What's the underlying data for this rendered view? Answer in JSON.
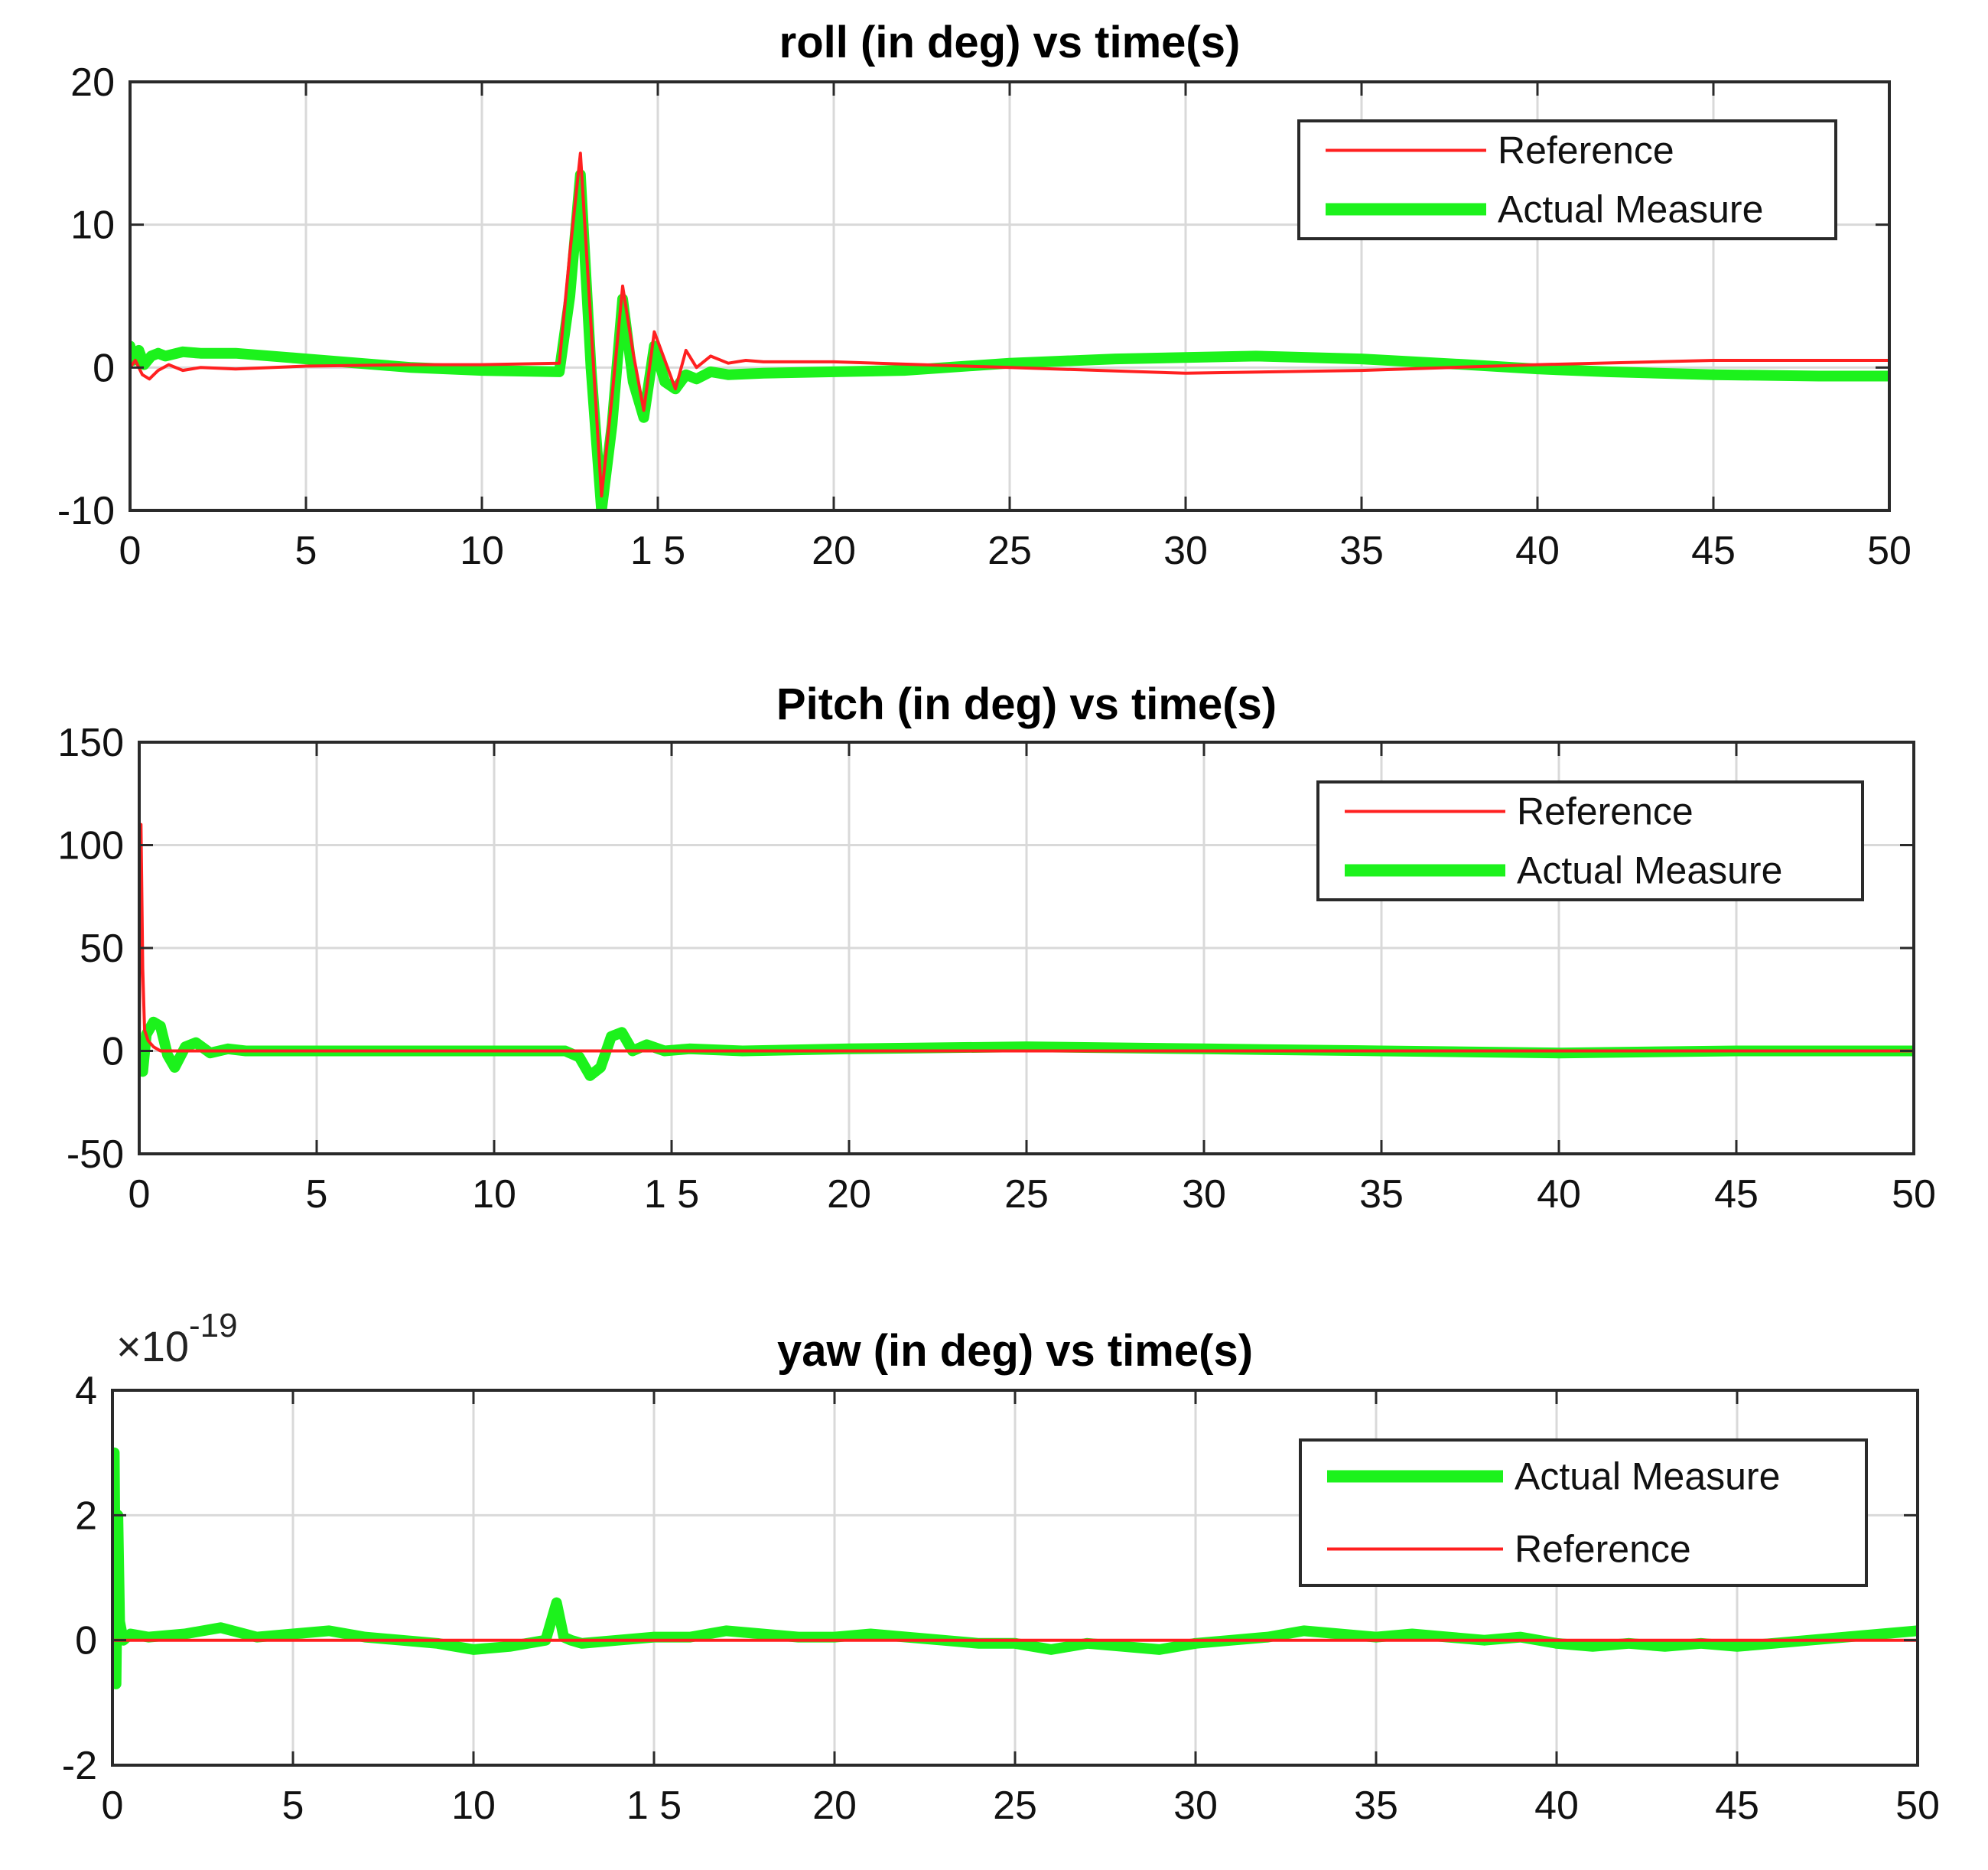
{
  "chart_data": [
    {
      "type": "line",
      "title": "roll (in deg) vs time(s)",
      "xlabel": "",
      "ylabel": "",
      "xlim": [
        0,
        50
      ],
      "ylim": [
        -10,
        20
      ],
      "xticks": [
        0,
        5,
        10,
        15,
        20,
        25,
        30,
        35,
        40,
        45,
        50
      ],
      "xtick_labels": [
        "0",
        "5",
        "10",
        "1 5",
        "20",
        "25",
        "30",
        "35",
        "40",
        "45",
        "50"
      ],
      "yticks": [
        -10,
        0,
        10,
        20
      ],
      "ytick_labels": [
        "-10",
        "0",
        "10",
        "20"
      ],
      "grid": true,
      "legend_position": "top-right",
      "legend": [
        "Reference",
        "Actual Measure"
      ],
      "series": [
        {
          "name": "Reference",
          "color": "#ff2020",
          "x": [
            0,
            0.15,
            0.35,
            0.55,
            0.8,
            1.1,
            1.5,
            2,
            3,
            5,
            8,
            10,
            12.2,
            12.5,
            12.8,
            13.1,
            13.4,
            13.7,
            14.0,
            14.3,
            14.6,
            14.9,
            15.2,
            15.5,
            15.8,
            16.1,
            16.5,
            17,
            17.5,
            18,
            20,
            25,
            30,
            35,
            40,
            45,
            50
          ],
          "values": [
            0,
            0.5,
            -0.5,
            -0.8,
            -0.2,
            0.2,
            -0.2,
            0,
            -0.1,
            0.1,
            0.2,
            0.2,
            0.3,
            8,
            15,
            3,
            -9,
            -2,
            5.7,
            1,
            -3,
            2.5,
            0.5,
            -1.5,
            1.2,
            0,
            0.8,
            0.3,
            0.5,
            0.4,
            0.4,
            0,
            -0.4,
            -0.2,
            0.2,
            0.5,
            0.5
          ]
        },
        {
          "name": "Actual Measure",
          "color": "#1cf21c",
          "x": [
            0,
            0.1,
            0.25,
            0.4,
            0.6,
            0.8,
            1,
            1.5,
            2,
            3,
            5,
            8,
            10,
            12.2,
            12.5,
            12.8,
            13.1,
            13.4,
            13.7,
            14.0,
            14.3,
            14.6,
            14.9,
            15.2,
            15.5,
            15.8,
            16.1,
            16.5,
            17,
            18,
            20,
            22,
            25,
            28,
            32,
            35,
            38,
            40,
            42,
            45,
            48,
            50
          ],
          "values": [
            1.5,
            0.5,
            1.2,
            0.2,
            0.8,
            1,
            0.8,
            1.1,
            1,
            1,
            0.6,
            0,
            -0.2,
            -0.3,
            5,
            13.5,
            0,
            -10,
            -4,
            4.8,
            -1,
            -3.5,
            1.5,
            -1,
            -1.5,
            -0.5,
            -0.8,
            -0.3,
            -0.5,
            -0.4,
            -0.3,
            -0.2,
            0.3,
            0.6,
            0.8,
            0.6,
            0.2,
            -0.1,
            -0.3,
            -0.5,
            -0.6,
            -0.6
          ]
        }
      ]
    },
    {
      "type": "line",
      "title": "Pitch (in deg) vs time(s)",
      "xlabel": "",
      "ylabel": "",
      "xlim": [
        0,
        50
      ],
      "ylim": [
        -50,
        150
      ],
      "xticks": [
        0,
        5,
        10,
        15,
        20,
        25,
        30,
        35,
        40,
        45,
        50
      ],
      "xtick_labels": [
        "0",
        "5",
        "10",
        "1 5",
        "20",
        "25",
        "30",
        "35",
        "40",
        "45",
        "50"
      ],
      "yticks": [
        -50,
        0,
        50,
        100,
        150
      ],
      "ytick_labels": [
        "-50",
        "0",
        "50",
        "100",
        "150"
      ],
      "grid": true,
      "legend_position": "top-right",
      "legend": [
        "Reference",
        "Actual Measure"
      ],
      "series": [
        {
          "name": "Reference",
          "color": "#ff2020",
          "x": [
            0,
            0.05,
            0.1,
            0.15,
            0.25,
            0.4,
            0.6,
            1,
            2,
            5,
            10,
            15,
            20,
            30,
            40,
            50
          ],
          "values": [
            0,
            110,
            40,
            10,
            5,
            2,
            0,
            0,
            0,
            0,
            0,
            0,
            0,
            0,
            0,
            0
          ]
        },
        {
          "name": "Actual Measure",
          "color": "#1cf21c",
          "x": [
            0,
            0.1,
            0.2,
            0.4,
            0.6,
            0.8,
            1.0,
            1.3,
            1.6,
            2.0,
            2.5,
            3,
            5,
            8,
            10,
            12,
            12.4,
            12.7,
            13.0,
            13.3,
            13.6,
            13.9,
            14.3,
            14.8,
            15.5,
            17,
            20,
            25,
            30,
            35,
            40,
            45,
            50
          ],
          "values": [
            0,
            -10,
            8,
            14,
            12,
            -2,
            -8,
            2,
            4,
            -1,
            1,
            0,
            0,
            0,
            0,
            0,
            -3,
            -12,
            -8,
            7,
            9,
            0,
            3,
            0,
            1,
            0,
            1,
            2,
            1,
            0,
            -1,
            0,
            0
          ]
        }
      ]
    },
    {
      "type": "line",
      "title": "yaw (in deg) vs time(s)",
      "xlabel": "",
      "ylabel": "",
      "exponent_label_prefix": "×10",
      "exponent_label_power": "-19",
      "xlim": [
        0,
        50
      ],
      "ylim": [
        -2,
        4
      ],
      "xticks": [
        0,
        5,
        10,
        15,
        20,
        25,
        30,
        35,
        40,
        45,
        50
      ],
      "xtick_labels": [
        "0",
        "5",
        "10",
        "1 5",
        "20",
        "25",
        "30",
        "35",
        "40",
        "45",
        "50"
      ],
      "yticks": [
        -2,
        0,
        2,
        4
      ],
      "ytick_labels": [
        "-2",
        "0",
        "2",
        "4"
      ],
      "grid": true,
      "legend_position": "top-right",
      "legend": [
        "Actual Measure",
        "Reference"
      ],
      "series": [
        {
          "name": "Actual Measure",
          "color": "#1cf21c",
          "x": [
            0,
            0.05,
            0.1,
            0.15,
            0.2,
            0.3,
            0.5,
            1,
            2,
            3,
            4,
            5,
            6,
            7,
            8,
            9,
            10,
            11,
            12,
            12.3,
            12.5,
            12.7,
            13,
            14,
            15,
            16,
            17,
            18,
            19,
            20,
            21,
            22,
            23,
            24,
            25,
            26,
            27,
            28,
            29,
            30,
            31,
            32,
            33,
            34,
            35,
            36,
            37,
            38,
            39,
            40,
            41,
            42,
            43,
            44,
            45,
            46,
            47,
            48,
            49,
            50
          ],
          "values": [
            0,
            3,
            -0.7,
            2,
            0.3,
            0,
            0.1,
            0.05,
            0.1,
            0.2,
            0.05,
            0.1,
            0.15,
            0.05,
            0,
            -0.05,
            -0.15,
            -0.1,
            0,
            0.6,
            0.05,
            0,
            -0.05,
            0,
            0.05,
            0.05,
            0.15,
            0.1,
            0.05,
            0.05,
            0.1,
            0.05,
            0,
            -0.05,
            -0.05,
            -0.15,
            -0.05,
            -0.1,
            -0.15,
            -0.05,
            0,
            0.05,
            0.15,
            0.1,
            0.05,
            0.1,
            0.05,
            0,
            0.05,
            -0.05,
            -0.1,
            -0.05,
            -0.1,
            -0.05,
            -0.1,
            -0.05,
            0,
            0.05,
            0.1,
            0.15
          ]
        },
        {
          "name": "Reference",
          "color": "#ff2020",
          "x": [
            0,
            50
          ],
          "values": [
            0,
            0
          ]
        }
      ]
    }
  ]
}
